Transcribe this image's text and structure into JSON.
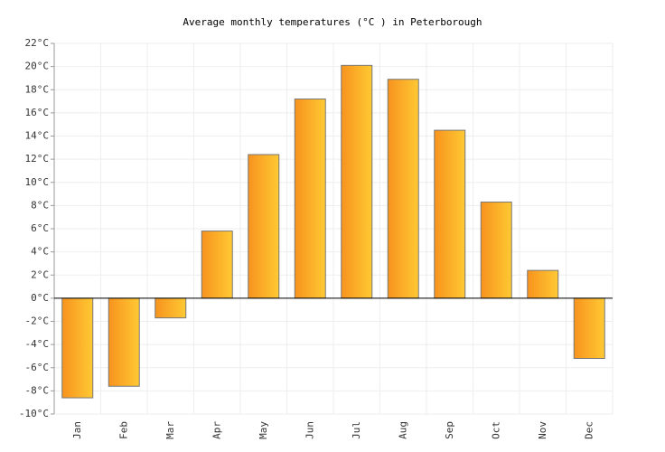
{
  "chart_data": {
    "type": "bar",
    "title": "Average monthly temperatures (°C ) in Peterborough",
    "categories": [
      "Jan",
      "Feb",
      "Mar",
      "Apr",
      "May",
      "Jun",
      "Jul",
      "Aug",
      "Sep",
      "Oct",
      "Nov",
      "Dec"
    ],
    "values": [
      -8.6,
      -7.6,
      -1.7,
      5.8,
      12.4,
      17.2,
      20.1,
      18.9,
      14.5,
      8.3,
      2.4,
      -5.2
    ],
    "gradient": [
      "#f7931e",
      "#ffc933"
    ],
    "ylim": [
      -10,
      22
    ],
    "yticks": [
      {
        "value": -10,
        "label": "-10°C"
      },
      {
        "value": -8,
        "label": "-8°C"
      },
      {
        "value": -6,
        "label": "-6°C"
      },
      {
        "value": -4,
        "label": "-4°C"
      },
      {
        "value": -2,
        "label": "-2°C"
      },
      {
        "value": 0,
        "label": "0°C"
      },
      {
        "value": 2,
        "label": "2°C"
      },
      {
        "value": 4,
        "label": "4°C"
      },
      {
        "value": 6,
        "label": "6°C"
      },
      {
        "value": 8,
        "label": "8°C"
      },
      {
        "value": 10,
        "label": "10°C"
      },
      {
        "value": 12,
        "label": "12°C"
      },
      {
        "value": 14,
        "label": "14°C"
      },
      {
        "value": 16,
        "label": "16°C"
      },
      {
        "value": 18,
        "label": "18°C"
      },
      {
        "value": 20,
        "label": "20°C"
      },
      {
        "value": 22,
        "label": "22°C"
      }
    ],
    "grid": true
  }
}
